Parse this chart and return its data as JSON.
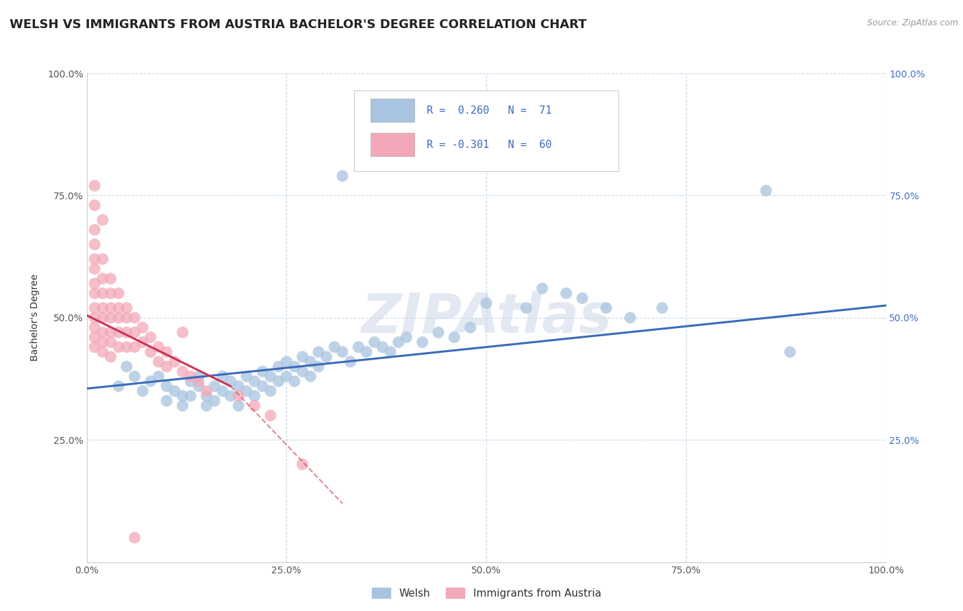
{
  "title": "WELSH VS IMMIGRANTS FROM AUSTRIA BACHELOR'S DEGREE CORRELATION CHART",
  "source": "Source: ZipAtlas.com",
  "ylabel": "Bachelor's Degree",
  "xlabel": "",
  "x_tick_labels": [
    "0.0%",
    "25.0%",
    "50.0%",
    "75.0%",
    "100.0%"
  ],
  "y_tick_labels_left": [
    "",
    "25.0%",
    "50.0%",
    "75.0%",
    "100.0%"
  ],
  "y_tick_labels_right": [
    "",
    "25.0%",
    "50.0%",
    "75.0%",
    "100.0%"
  ],
  "xlim": [
    0,
    1
  ],
  "ylim": [
    0,
    1
  ],
  "legend_labels": [
    "Welsh",
    "Immigrants from Austria"
  ],
  "welsh_color": "#a8c4e0",
  "austria_color": "#f2a8b8",
  "welsh_line_color": "#3a6bba",
  "austria_line_color": "#cc3355",
  "watermark": "ZIPAtlas",
  "welsh_scatter": [
    [
      0.04,
      0.36
    ],
    [
      0.05,
      0.4
    ],
    [
      0.06,
      0.38
    ],
    [
      0.07,
      0.35
    ],
    [
      0.08,
      0.37
    ],
    [
      0.09,
      0.38
    ],
    [
      0.1,
      0.36
    ],
    [
      0.1,
      0.33
    ],
    [
      0.11,
      0.35
    ],
    [
      0.12,
      0.34
    ],
    [
      0.12,
      0.32
    ],
    [
      0.13,
      0.37
    ],
    [
      0.13,
      0.34
    ],
    [
      0.14,
      0.38
    ],
    [
      0.14,
      0.36
    ],
    [
      0.15,
      0.34
    ],
    [
      0.15,
      0.32
    ],
    [
      0.16,
      0.36
    ],
    [
      0.16,
      0.33
    ],
    [
      0.17,
      0.38
    ],
    [
      0.17,
      0.35
    ],
    [
      0.18,
      0.37
    ],
    [
      0.18,
      0.34
    ],
    [
      0.19,
      0.36
    ],
    [
      0.19,
      0.32
    ],
    [
      0.2,
      0.38
    ],
    [
      0.2,
      0.35
    ],
    [
      0.21,
      0.37
    ],
    [
      0.21,
      0.34
    ],
    [
      0.22,
      0.39
    ],
    [
      0.22,
      0.36
    ],
    [
      0.23,
      0.38
    ],
    [
      0.23,
      0.35
    ],
    [
      0.24,
      0.4
    ],
    [
      0.24,
      0.37
    ],
    [
      0.25,
      0.41
    ],
    [
      0.25,
      0.38
    ],
    [
      0.26,
      0.4
    ],
    [
      0.26,
      0.37
    ],
    [
      0.27,
      0.42
    ],
    [
      0.27,
      0.39
    ],
    [
      0.28,
      0.41
    ],
    [
      0.28,
      0.38
    ],
    [
      0.29,
      0.43
    ],
    [
      0.29,
      0.4
    ],
    [
      0.3,
      0.42
    ],
    [
      0.31,
      0.44
    ],
    [
      0.32,
      0.43
    ],
    [
      0.33,
      0.41
    ],
    [
      0.34,
      0.44
    ],
    [
      0.35,
      0.43
    ],
    [
      0.36,
      0.45
    ],
    [
      0.37,
      0.44
    ],
    [
      0.38,
      0.43
    ],
    [
      0.39,
      0.45
    ],
    [
      0.4,
      0.46
    ],
    [
      0.42,
      0.45
    ],
    [
      0.44,
      0.47
    ],
    [
      0.46,
      0.46
    ],
    [
      0.48,
      0.48
    ],
    [
      0.32,
      0.79
    ],
    [
      0.5,
      0.53
    ],
    [
      0.55,
      0.52
    ],
    [
      0.57,
      0.56
    ],
    [
      0.6,
      0.55
    ],
    [
      0.62,
      0.54
    ],
    [
      0.65,
      0.52
    ],
    [
      0.68,
      0.5
    ],
    [
      0.72,
      0.52
    ],
    [
      0.85,
      0.76
    ],
    [
      0.88,
      0.43
    ]
  ],
  "austria_scatter": [
    [
      0.01,
      0.65
    ],
    [
      0.01,
      0.62
    ],
    [
      0.01,
      0.6
    ],
    [
      0.01,
      0.57
    ],
    [
      0.01,
      0.55
    ],
    [
      0.01,
      0.52
    ],
    [
      0.01,
      0.5
    ],
    [
      0.01,
      0.48
    ],
    [
      0.01,
      0.46
    ],
    [
      0.01,
      0.44
    ],
    [
      0.02,
      0.62
    ],
    [
      0.02,
      0.58
    ],
    [
      0.02,
      0.55
    ],
    [
      0.02,
      0.52
    ],
    [
      0.02,
      0.5
    ],
    [
      0.02,
      0.47
    ],
    [
      0.02,
      0.45
    ],
    [
      0.02,
      0.43
    ],
    [
      0.03,
      0.58
    ],
    [
      0.03,
      0.55
    ],
    [
      0.03,
      0.52
    ],
    [
      0.03,
      0.5
    ],
    [
      0.03,
      0.47
    ],
    [
      0.03,
      0.45
    ],
    [
      0.03,
      0.42
    ],
    [
      0.04,
      0.55
    ],
    [
      0.04,
      0.52
    ],
    [
      0.04,
      0.5
    ],
    [
      0.04,
      0.47
    ],
    [
      0.04,
      0.44
    ],
    [
      0.05,
      0.52
    ],
    [
      0.05,
      0.5
    ],
    [
      0.05,
      0.47
    ],
    [
      0.05,
      0.44
    ],
    [
      0.06,
      0.5
    ],
    [
      0.06,
      0.47
    ],
    [
      0.06,
      0.44
    ],
    [
      0.07,
      0.48
    ],
    [
      0.07,
      0.45
    ],
    [
      0.08,
      0.46
    ],
    [
      0.08,
      0.43
    ],
    [
      0.09,
      0.44
    ],
    [
      0.09,
      0.41
    ],
    [
      0.1,
      0.43
    ],
    [
      0.1,
      0.4
    ],
    [
      0.11,
      0.41
    ],
    [
      0.12,
      0.39
    ],
    [
      0.13,
      0.38
    ],
    [
      0.14,
      0.37
    ],
    [
      0.15,
      0.35
    ],
    [
      0.01,
      0.77
    ],
    [
      0.01,
      0.73
    ],
    [
      0.02,
      0.7
    ],
    [
      0.01,
      0.68
    ],
    [
      0.12,
      0.47
    ],
    [
      0.19,
      0.34
    ],
    [
      0.21,
      0.32
    ],
    [
      0.23,
      0.3
    ],
    [
      0.27,
      0.2
    ],
    [
      0.06,
      0.05
    ]
  ],
  "welsh_line": [
    [
      0.0,
      0.355
    ],
    [
      1.0,
      0.525
    ]
  ],
  "austria_line_solid": [
    [
      0.0,
      0.505
    ],
    [
      0.18,
      0.36
    ]
  ],
  "austria_line_dashed": [
    [
      0.18,
      0.36
    ],
    [
      0.32,
      0.12
    ]
  ],
  "background_color": "#ffffff",
  "grid_color": "#c8d8e8",
  "title_fontsize": 13,
  "axis_label_fontsize": 10,
  "tick_fontsize": 10
}
